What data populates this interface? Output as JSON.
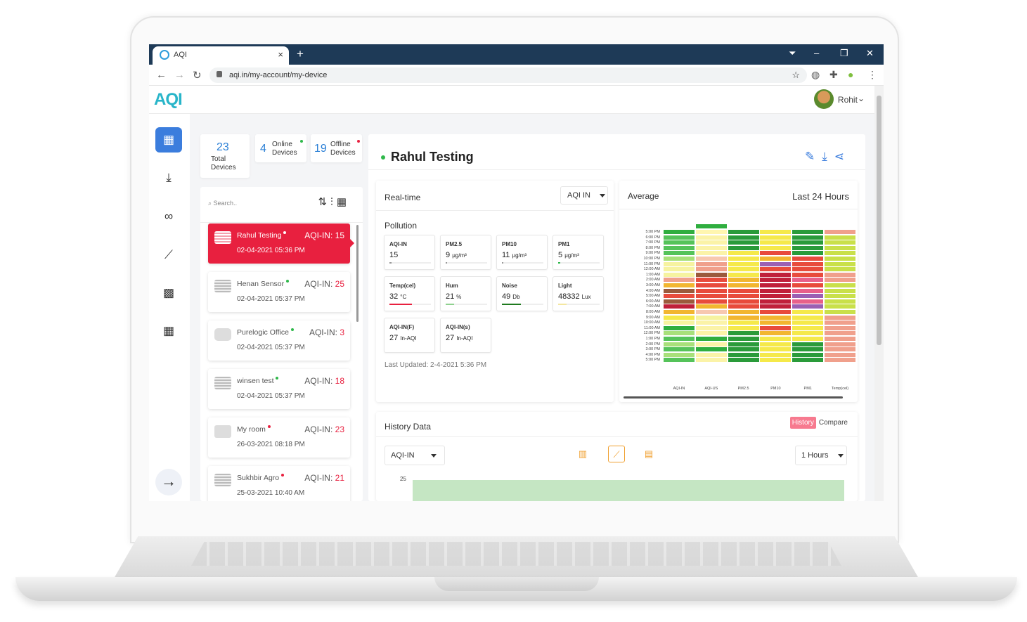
{
  "browser": {
    "tab_title": "AQI",
    "tab_close": "×",
    "new_tab": "+",
    "url": "aqi.in/my-account/my-device",
    "min": "–",
    "restore": "❐",
    "close": "✕"
  },
  "app": {
    "logo": "AQI",
    "user_name": "Rohit"
  },
  "stats": {
    "total_count": "23",
    "total_label": "Total Devices",
    "online_count": "4",
    "online_label": "Online Devices",
    "offline_count": "19",
    "offline_label": "Offline Devices"
  },
  "device_list": {
    "search_placeholder": "Search..",
    "devices": [
      {
        "name": "Rahul Testing",
        "status": "offline",
        "aqi_label": "AQI-IN:",
        "aqi": "15",
        "date": "02-04-2021 05:36 PM"
      },
      {
        "name": "Henan Sensor",
        "status": "online",
        "aqi_label": "AQI-IN:",
        "aqi": "25",
        "date": "02-04-2021 05:37 PM"
      },
      {
        "name": "Purelogic Office",
        "status": "online",
        "aqi_label": "AQI-IN:",
        "aqi": "3",
        "date": "02-04-2021 05:37 PM"
      },
      {
        "name": "winsen test",
        "status": "online",
        "aqi_label": "AQI-IN:",
        "aqi": "18",
        "date": "02-04-2021 05:37 PM"
      },
      {
        "name": "My room",
        "status": "offline",
        "aqi_label": "AQI-IN:",
        "aqi": "23",
        "date": "26-03-2021 08:18 PM"
      },
      {
        "name": "Sukhbir Agro",
        "status": "offline",
        "aqi_label": "AQI-IN:",
        "aqi": "21",
        "date": "25-03-2021 10:40 AM"
      }
    ]
  },
  "detail": {
    "device_name": "Rahul Testing",
    "realtime": {
      "title": "Real-time",
      "selector": "AQI IN",
      "section": "Pollution",
      "tiles": [
        {
          "label": "AQI-IN",
          "value": "15",
          "unit": "",
          "fill": 0.05,
          "color": "#999999"
        },
        {
          "label": "PM2.5",
          "value": "9",
          "unit": "μg/m³",
          "fill": 0.04,
          "color": "#999999"
        },
        {
          "label": "PM10",
          "value": "11",
          "unit": "μg/m³",
          "fill": 0.03,
          "color": "#999999"
        },
        {
          "label": "PM1",
          "value": "5",
          "unit": "μg/m³",
          "fill": 0.05,
          "color": "#2fb84b"
        },
        {
          "label": "Temp(cel)",
          "value": "32",
          "unit": "°C",
          "fill": 0.55,
          "color": "#e8203f"
        },
        {
          "label": "Hum",
          "value": "21",
          "unit": "%",
          "fill": 0.21,
          "color": "#8fd18f"
        },
        {
          "label": "Noise",
          "value": "49",
          "unit": "Db",
          "fill": 0.45,
          "color": "#1f7a1f"
        },
        {
          "label": "Light",
          "value": "48332",
          "unit": "Lux",
          "fill": 0.2,
          "color": "#f4e7a0"
        },
        {
          "label": "AQI-IN(F)",
          "value": "27",
          "unit": "In-AQI",
          "fill": 0,
          "color": "#999999"
        },
        {
          "label": "AQI-IN(s)",
          "value": "27",
          "unit": "In-AQI",
          "fill": 0,
          "color": "#999999"
        }
      ],
      "last_updated": "Last Updated: 2-4-2021 5:36 PM"
    },
    "average": {
      "title": "Average",
      "range": "Last 24 Hours"
    },
    "history": {
      "title": "History Data",
      "tab_history": "History",
      "tab_compare": "Compare",
      "metric": "AQI-IN",
      "interval": "1 Hours",
      "y_tick": "25"
    }
  },
  "chart_data": {
    "type": "heatmap",
    "title": "",
    "y": [
      "5:00 PM",
      "6:00 PM",
      "7:00 PM",
      "8:00 PM",
      "9:00 PM",
      "10:00 PM",
      "11:00 PM",
      "12:00 AM",
      "1:00 AM",
      "2:00 AM",
      "3:00 AM",
      "4:00 AM",
      "5:00 AM",
      "6:00 AM",
      "7:00 AM",
      "8:00 AM",
      "9:00 AM",
      "10:00 AM",
      "11:00 AM",
      "12:00 PM",
      "1:00 PM",
      "2:00 PM",
      "3:00 PM",
      "4:00 PM",
      "5:00 PM"
    ],
    "x": [
      "AQI-IN",
      "AQI-US",
      "PM2.5",
      "PM10",
      "PM1",
      "Temp(cel)"
    ],
    "colors": [
      [
        "#2fae3f",
        "#fff6b0",
        "#2a9b3a",
        "#f5e94a",
        "#2a9b3a",
        "#f0a08c"
      ],
      [
        "#55c35a",
        "#fbf3a8",
        "#2a9b3a",
        "#f5e94a",
        "#2a9b3a",
        "#c9e04a"
      ],
      [
        "#55c35a",
        "#fbf3a8",
        "#2a9b3a",
        "#f5e94a",
        "#2a9b3a",
        "#c9e04a"
      ],
      [
        "#55c35a",
        "#fbf3a8",
        "#2a9b3a",
        "#f5e94a",
        "#2a9b3a",
        "#c9e04a"
      ],
      [
        "#55c35a",
        "#fbf3a8",
        "#f5e94a",
        "#e84b3c",
        "#2a9b3a",
        "#c9e04a"
      ],
      [
        "#a8e07a",
        "#f7c8b0",
        "#f5e94a",
        "#f2b630",
        "#e84b3c",
        "#c9e04a"
      ],
      [
        "#f6f3a0",
        "#f0a08c",
        "#f5e94a",
        "#9b5fb3",
        "#e84b3c",
        "#c9e04a"
      ],
      [
        "#f6f3a0",
        "#f0a08c",
        "#f5e94a",
        "#e84b3c",
        "#e84b3c",
        "#c9e04a"
      ],
      [
        "#f6f3a0",
        "#9b5a3c",
        "#f5e94a",
        "#c0203a",
        "#e84b3c",
        "#f0a08c"
      ],
      [
        "#f0a08c",
        "#e84b3c",
        "#f2b630",
        "#c0203a",
        "#e8608a",
        "#f0a08c"
      ],
      [
        "#f2b630",
        "#e84b3c",
        "#f2b630",
        "#c0203a",
        "#e84b3c",
        "#c9e04a"
      ],
      [
        "#9b5a3c",
        "#e84b3c",
        "#e84b3c",
        "#c0203a",
        "#e8608a",
        "#c9e04a"
      ],
      [
        "#e84b3c",
        "#e84b3c",
        "#e84b3c",
        "#c0203a",
        "#9b5fb3",
        "#c9e04a"
      ],
      [
        "#9b5a3c",
        "#e84b3c",
        "#e84b3c",
        "#c0203a",
        "#e8608a",
        "#c9e04a"
      ],
      [
        "#c0203a",
        "#f2b630",
        "#e84b3c",
        "#c0203a",
        "#9b5fb3",
        "#c9e04a"
      ],
      [
        "#f2b630",
        "#f7c8b0",
        "#f2b630",
        "#e84b3c",
        "#f5e94a",
        "#c9e04a"
      ],
      [
        "#f5e94a",
        "#f6f3a0",
        "#f2b630",
        "#f2b630",
        "#f5e94a",
        "#f0a08c"
      ],
      [
        "#f6f3a0",
        "#fbf3a8",
        "#f5e94a",
        "#f2b630",
        "#f5e94a",
        "#f0a08c"
      ],
      [
        "#2fae3f",
        "#fbf3a8",
        "#f5e94a",
        "#e84b3c",
        "#f5e94a",
        "#f0a08c"
      ],
      [
        "#a8e07a",
        "#fbf3a8",
        "#2a9b3a",
        "#f2b630",
        "#f5e94a",
        "#f0a08c"
      ],
      [
        "#55c35a",
        "#2fae3f",
        "#2a9b3a",
        "#f5e94a",
        "#f5e94a",
        "#f0a08c"
      ],
      [
        "#a8e07a",
        "#fbf3a8",
        "#2a9b3a",
        "#f5e94a",
        "#2a9b3a",
        "#f0a08c"
      ],
      [
        "#55c35a",
        "#2fae3f",
        "#2a9b3a",
        "#f5e94a",
        "#2a9b3a",
        "#f0a08c"
      ],
      [
        "#a8e07a",
        "#fbf3a8",
        "#2a9b3a",
        "#f5e94a",
        "#2a9b3a",
        "#f0a08c"
      ],
      [
        "#55c35a",
        "#fbf3a8",
        "#2a9b3a",
        "#f5e94a",
        "#2a9b3a",
        "#f0a08c"
      ]
    ],
    "extra_top_cell": {
      "column": "AQI-US",
      "color": "#2fae3f"
    }
  }
}
